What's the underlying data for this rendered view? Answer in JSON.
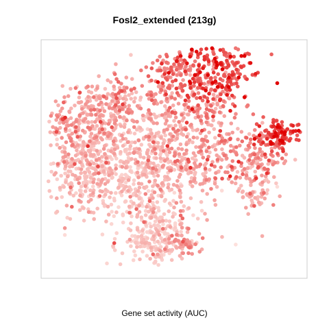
{
  "chart_data": {
    "type": "scatter",
    "title": "Fosl2_extended (213g)",
    "xlabel": "Gene set activity (AUC)",
    "ylabel": "",
    "grid": false,
    "legend": "none",
    "axes_ticks_shown": false,
    "point_color_low": "#fde4e0",
    "point_color_high": "#e00000",
    "color_encodes": "Gene set activity (AUC)",
    "frame_color": "#cccccc"
  }
}
